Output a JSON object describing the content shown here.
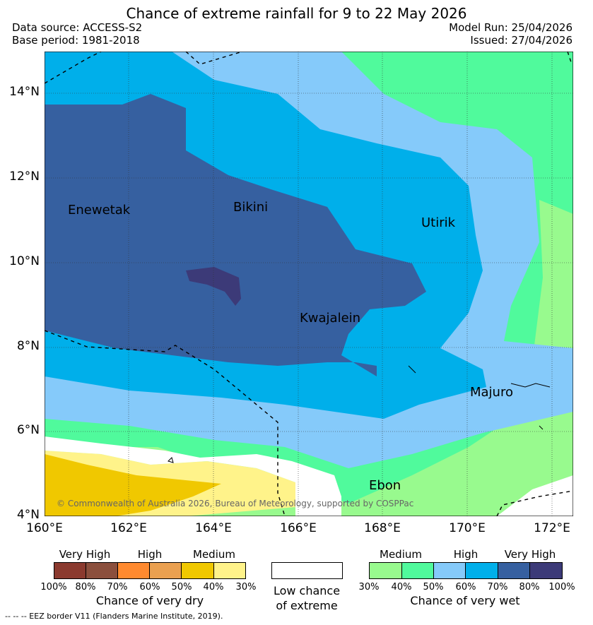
{
  "header": {
    "title": "Chance of extreme rainfall for 9 to 22 May 2026",
    "data_source": "Data source: ACCESS-S2",
    "base_period": "Base period: 1981-2018",
    "model_run": "Model Run: 25/04/2026",
    "issued": "Issued: 27/04/2026"
  },
  "map": {
    "lat_labels": [
      "14°N",
      "12°N",
      "10°N",
      "8°N",
      "6°N",
      "4°N"
    ],
    "lon_labels": [
      "160°E",
      "162°E",
      "164°E",
      "166°E",
      "168°E",
      "170°E",
      "172°E"
    ],
    "places": {
      "enewetak": "Enewetak",
      "bikini": "Bikini",
      "utirik": "Utirik",
      "kwajalein": "Kwajalein",
      "majuro": "Majuro",
      "ebon": "Ebon"
    },
    "copyright": "© Commonwealth of Australia 2026, Bureau of Meteorology, supported by COSPPac"
  },
  "legend_dry": {
    "levels": [
      "Very High",
      "High",
      "Medium"
    ],
    "ticks": [
      "100%",
      "80%",
      "70%",
      "60%",
      "50%",
      "40%",
      "30%"
    ],
    "colors": [
      "#8b3a2f",
      "#8b4f3d",
      "#ff8a30",
      "#eaa050",
      "#f0c800",
      "#fff38a"
    ],
    "title": "Chance of very dry"
  },
  "legend_low": {
    "line1": "Low chance",
    "line2": "of extreme"
  },
  "legend_wet": {
    "levels": [
      "Medium",
      "High",
      "Very High"
    ],
    "ticks": [
      "30%",
      "40%",
      "50%",
      "60%",
      "70%",
      "80%",
      "100%"
    ],
    "colors": [
      "#98fa8e",
      "#50fa9c",
      "#85cafa",
      "#00afea",
      "#3660a0",
      "#3c3a78"
    ],
    "title": "Chance of very wet"
  },
  "footnote": "-- -- -- EEZ border V11 (Flanders Marine Institute, 2019)."
}
